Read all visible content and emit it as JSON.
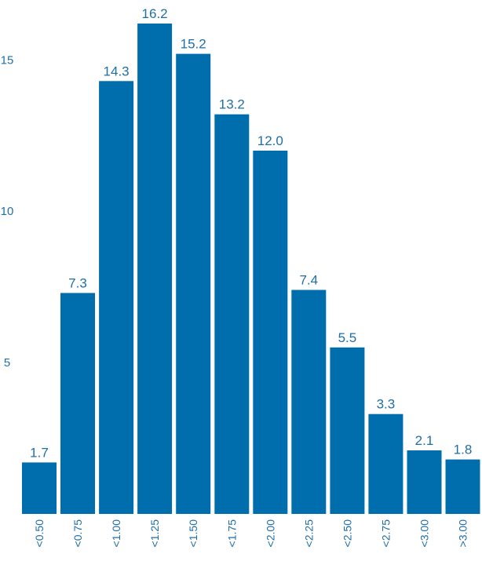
{
  "chart_data": {
    "type": "bar",
    "categories": [
      "<0.50",
      "<0.75",
      "<1.00",
      "<1.25",
      "<1.50",
      "<1.75",
      "<2.00",
      "<2.25",
      "<2.50",
      "<2.75",
      "<3.00",
      ">3.00"
    ],
    "values": [
      1.7,
      7.3,
      14.3,
      16.2,
      15.2,
      13.2,
      12.0,
      7.4,
      5.5,
      3.3,
      2.1,
      1.8
    ],
    "data_labels": [
      "1.7",
      "7.3",
      "14.3",
      "16.2",
      "15.2",
      "13.2",
      "12.0",
      "7.4",
      "5.5",
      "3.3",
      "2.1",
      "1.8"
    ],
    "yticks": [
      5,
      10,
      15
    ],
    "ylim": [
      0,
      16.2
    ],
    "grid": false,
    "colors": {
      "bar": "#006ead",
      "text": "#1f6ea8",
      "background": "#ffffff"
    }
  }
}
